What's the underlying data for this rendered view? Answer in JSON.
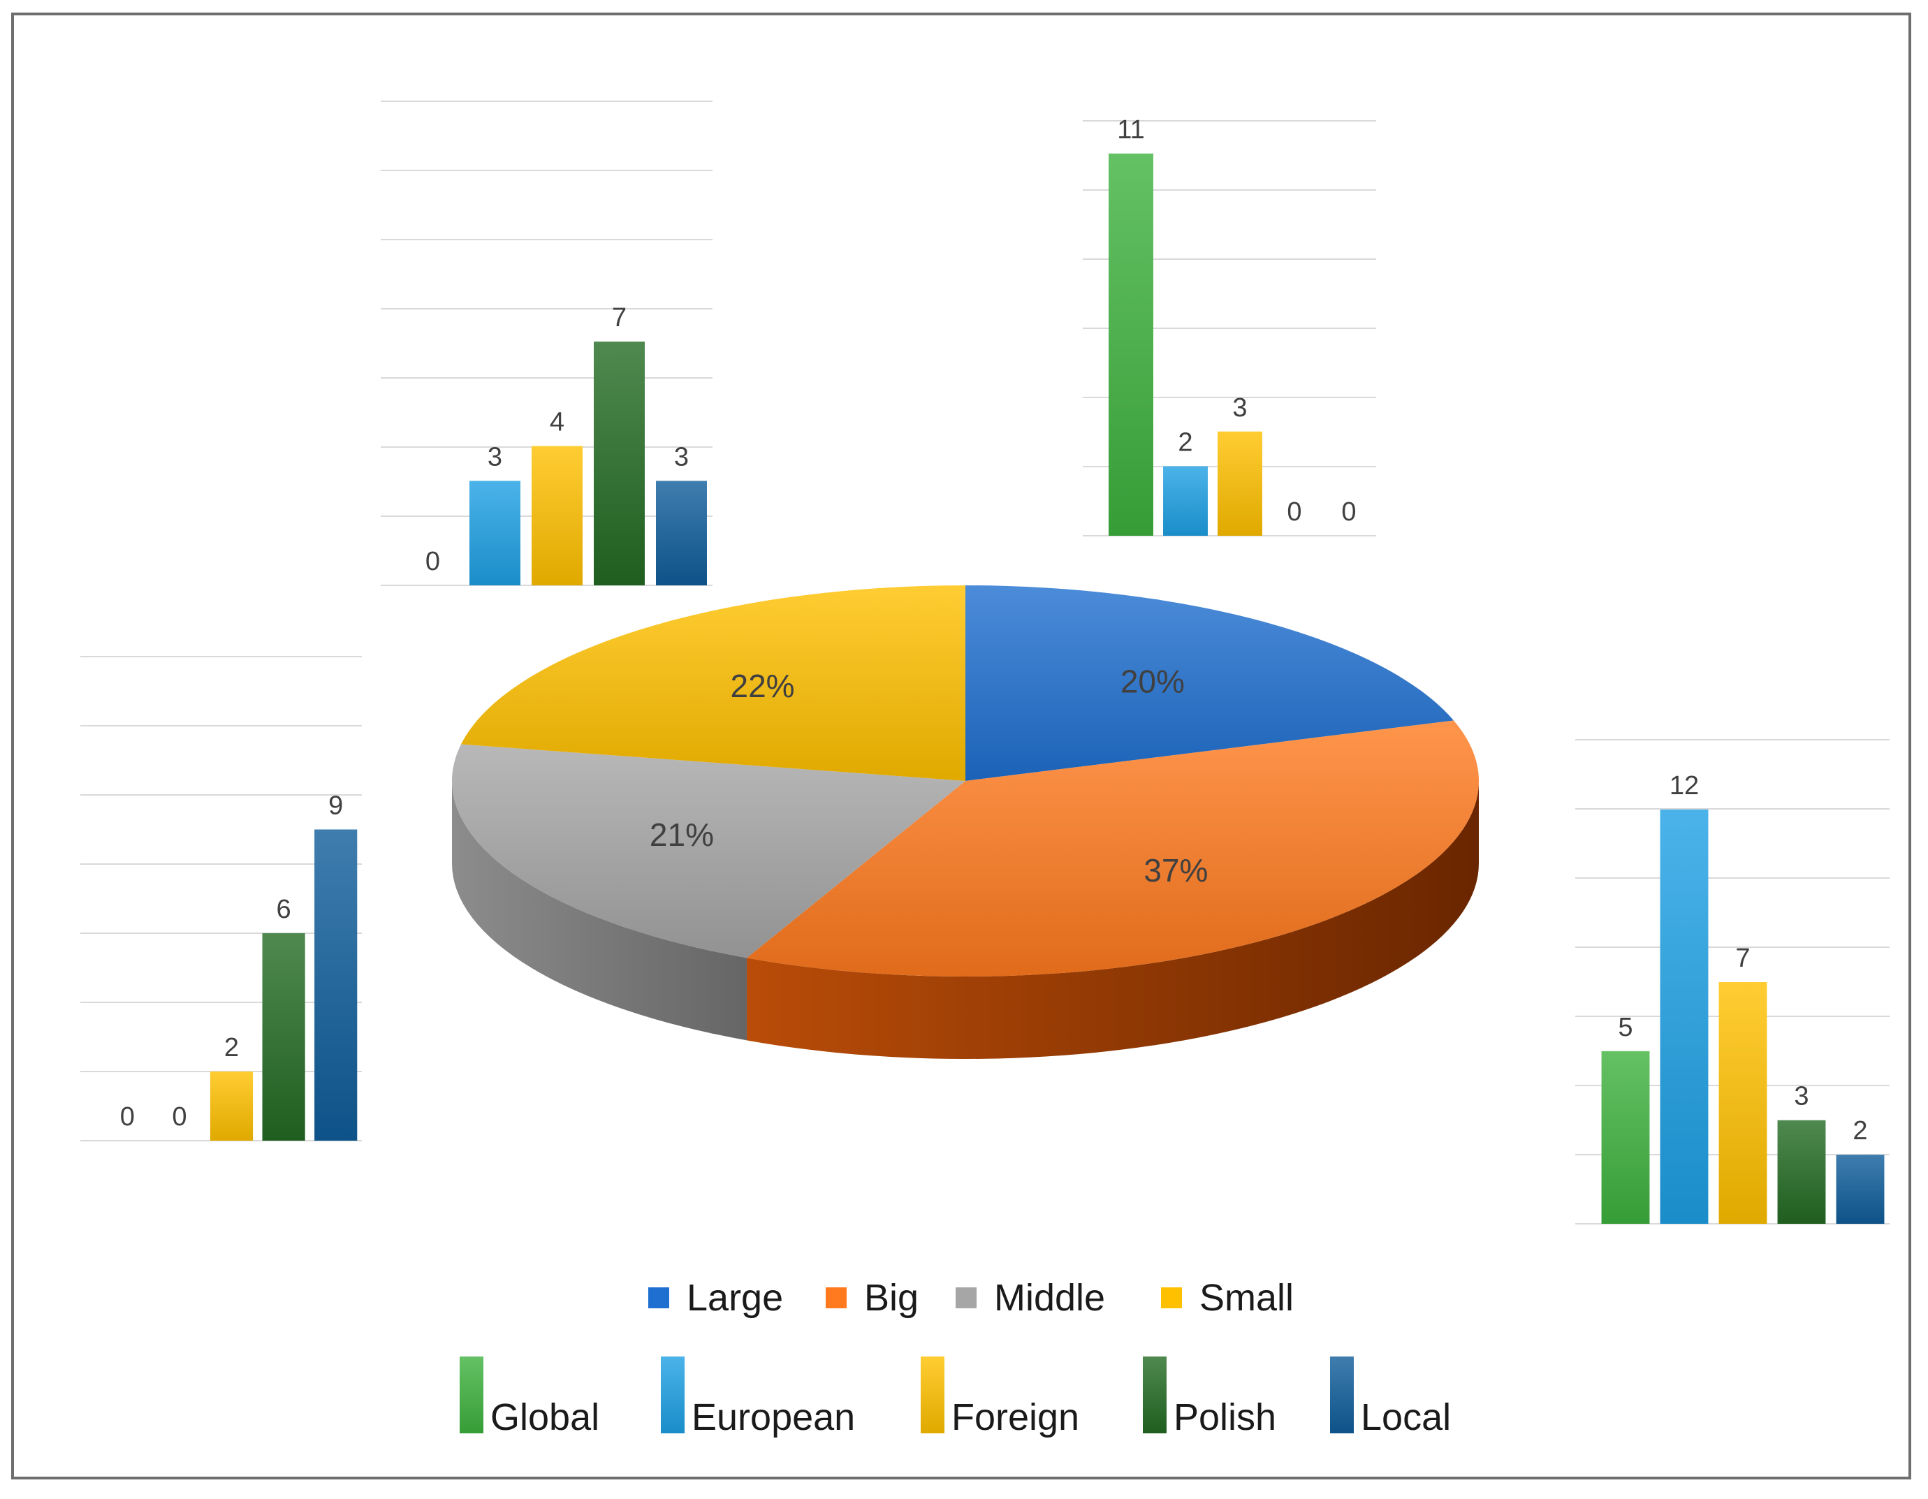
{
  "colors": {
    "Large": "#1f6fd0",
    "Big": "#ff7a1f",
    "Middle": "#a6a6a6",
    "Small": "#ffc000",
    "Global": "#3db23d",
    "European": "#1ea0e4",
    "Foreign": "#ffc000",
    "Polish": "#236b23",
    "Local": "#0f5d9a"
  },
  "chart_data": [
    {
      "type": "pie",
      "style": "3d",
      "categories": [
        "Large",
        "Big",
        "Middle",
        "Small"
      ],
      "values": [
        20,
        37,
        21,
        22
      ],
      "data_labels": [
        "20%",
        "37%",
        "21%",
        "22%"
      ],
      "legend_placement": "bottom"
    },
    {
      "type": "bar",
      "position": "top-left",
      "categories": [
        "Global",
        "European",
        "Foreign",
        "Polish",
        "Local"
      ],
      "values": [
        0,
        3,
        4,
        7,
        3
      ],
      "data_labels": [
        "0",
        "3",
        "4",
        "7",
        "3"
      ],
      "ylim": [
        0,
        14
      ],
      "grid": true
    },
    {
      "type": "bar",
      "position": "top-right",
      "categories": [
        "Global",
        "European",
        "Foreign",
        "Polish",
        "Local"
      ],
      "values": [
        11,
        2,
        3,
        0,
        0
      ],
      "data_labels": [
        "11",
        "2",
        "3",
        "0",
        "0"
      ],
      "ylim": [
        0,
        12
      ],
      "grid": true
    },
    {
      "type": "bar",
      "position": "left",
      "categories": [
        "Global",
        "European",
        "Foreign",
        "Polish",
        "Local"
      ],
      "values": [
        0,
        0,
        2,
        6,
        9
      ],
      "data_labels": [
        "0",
        "0",
        "2",
        "6",
        "9"
      ],
      "ylim": [
        0,
        14
      ],
      "grid": true
    },
    {
      "type": "bar",
      "position": "right",
      "categories": [
        "Global",
        "European",
        "Foreign",
        "Polish",
        "Local"
      ],
      "values": [
        5,
        12,
        7,
        3,
        2
      ],
      "data_labels": [
        "5",
        "12",
        "7",
        "3",
        "2"
      ],
      "ylim": [
        0,
        14
      ],
      "grid": true
    }
  ],
  "legend_size": [
    {
      "key": "Large",
      "label": "Large"
    },
    {
      "key": "Big",
      "label": "Big"
    },
    {
      "key": "Middle",
      "label": "Middle"
    },
    {
      "key": "Small",
      "label": "Small"
    }
  ],
  "legend_scope": [
    {
      "key": "Global",
      "label": "Global"
    },
    {
      "key": "European",
      "label": "European"
    },
    {
      "key": "Foreign",
      "label": "Foreign"
    },
    {
      "key": "Polish",
      "label": "Polish"
    },
    {
      "key": "Local",
      "label": "Local"
    }
  ]
}
